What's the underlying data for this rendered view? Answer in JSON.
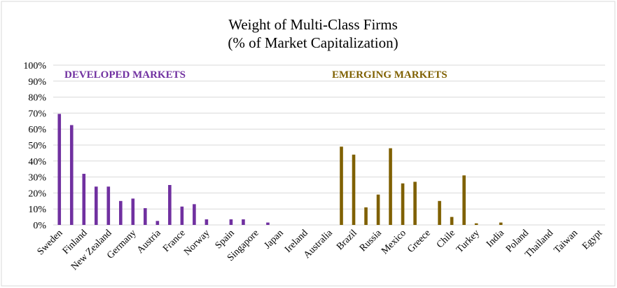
{
  "chart_data": {
    "type": "bar",
    "title": [
      "Weight of Multi-Class Firms",
      "(% of Market Capitalization)"
    ],
    "categories": [
      "Sweden",
      null,
      "Finland",
      null,
      "New Zealand",
      null,
      "Germany",
      null,
      "Austria",
      null,
      "France",
      null,
      "Norway",
      null,
      "Spain",
      null,
      "Singapore",
      null,
      "Japan",
      null,
      "Ireland",
      null,
      "Australia",
      null,
      "Brazil",
      null,
      "Russia",
      null,
      "Mexico",
      null,
      "Greece",
      null,
      "Chile",
      null,
      "Turkey",
      null,
      "India",
      null,
      "Poland",
      null,
      "Thailand",
      null,
      "Taiwan",
      null,
      "Egypt"
    ],
    "series": [
      {
        "name": "DEVELOPED MARKETS",
        "color": "#7030a0",
        "values": [
          69.5,
          62.5,
          32,
          24,
          24,
          15,
          16.5,
          10.5,
          2.5,
          25,
          11.5,
          13,
          3.5,
          0,
          3.5,
          3.5,
          0,
          1.5,
          0,
          0,
          0,
          0,
          0,
          null,
          null,
          null,
          null,
          null,
          null,
          null,
          null,
          null,
          null,
          null,
          null,
          null,
          null,
          null,
          null,
          null,
          null,
          null,
          null,
          null,
          null
        ]
      },
      {
        "name": "EMERGING MARKETS",
        "color": "#7f6000",
        "values": [
          null,
          null,
          null,
          null,
          null,
          null,
          null,
          null,
          null,
          null,
          null,
          null,
          null,
          null,
          null,
          null,
          null,
          null,
          null,
          null,
          null,
          null,
          null,
          49,
          44,
          11,
          19,
          48,
          26,
          27,
          0,
          15,
          5,
          31,
          1,
          0,
          1.5,
          0,
          0,
          0,
          0,
          0,
          0,
          0,
          0
        ]
      }
    ],
    "ylim": [
      0,
      100
    ],
    "yticks": [
      {
        "value": 0,
        "label": "0%"
      },
      {
        "value": 10,
        "label": "10%"
      },
      {
        "value": 20,
        "label": "20%"
      },
      {
        "value": 30,
        "label": "30%"
      },
      {
        "value": 40,
        "label": "40%"
      },
      {
        "value": 50,
        "label": "50%"
      },
      {
        "value": 60,
        "label": "60%"
      },
      {
        "value": 70,
        "label": "70%"
      },
      {
        "value": 80,
        "label": "80%"
      },
      {
        "value": 90,
        "label": "90%"
      },
      {
        "value": 100,
        "label": "100%"
      }
    ],
    "grid": true
  }
}
